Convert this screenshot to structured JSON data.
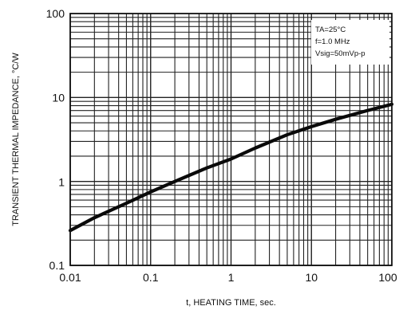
{
  "chart_data": {
    "type": "line",
    "xscale": "log",
    "yscale": "log",
    "xlim": [
      0.01,
      100
    ],
    "ylim": [
      0.1,
      100
    ],
    "grid": true,
    "xlabel": "t, HEATING TIME, sec.",
    "ylabel": "TRANSIENT THERMAL IMPEDANCE, °C/W",
    "x_tick_labels": [
      "0.01",
      "0.1",
      "1",
      "10",
      "100"
    ],
    "y_tick_labels": [
      "0.1",
      "1",
      "10",
      "100"
    ],
    "annotations": [
      "TA=25°C",
      "f=1.0 MHz",
      "Vsig=50mVp-p"
    ],
    "annotation_position": "top-right",
    "series": [
      {
        "x": [
          0.01,
          0.02,
          0.05,
          0.1,
          0.2,
          0.5,
          1,
          2,
          5,
          10,
          20,
          50,
          100
        ],
        "y": [
          0.26,
          0.37,
          0.55,
          0.75,
          1.0,
          1.45,
          1.85,
          2.5,
          3.6,
          4.5,
          5.5,
          7.0,
          8.3
        ]
      }
    ]
  }
}
